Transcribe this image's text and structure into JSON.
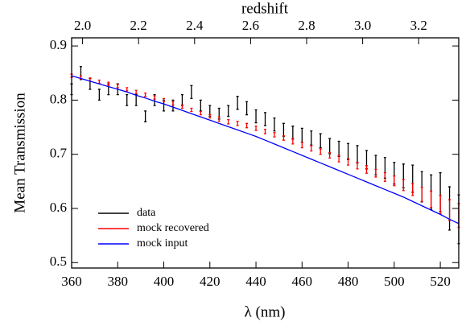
{
  "chart_data": {
    "type": "errorbar",
    "x_label": "λ (nm)",
    "y_label": "Mean Transmission",
    "x2_label": "redshift",
    "xlim": [
      360,
      528
    ],
    "ylim": [
      0.49,
      0.915
    ],
    "xticks": [
      360,
      380,
      400,
      420,
      440,
      460,
      480,
      500,
      520
    ],
    "yticks": [
      0.5,
      0.6,
      0.7,
      0.8,
      0.9
    ],
    "x2lim": [
      1.961,
      3.343
    ],
    "x2ticks": [
      {
        "value": 2.0,
        "label": "2.0"
      },
      2.2,
      2.4,
      2.6,
      2.8,
      {
        "value": 3.0,
        "label": "3.0"
      },
      3.2
    ],
    "legend": "lower left",
    "x": [
      360,
      364,
      368,
      372,
      376,
      380,
      384,
      388,
      392,
      396,
      400,
      404,
      408,
      412,
      416,
      420,
      424,
      428,
      432,
      436,
      440,
      444,
      448,
      452,
      456,
      460,
      464,
      468,
      472,
      476,
      480,
      484,
      488,
      492,
      496,
      500,
      504,
      508,
      512,
      516,
      520,
      524,
      528
    ],
    "series": [
      {
        "name": "data",
        "color": "#000000",
        "values": [
          0.82,
          0.85,
          0.83,
          0.81,
          0.82,
          0.82,
          0.8,
          0.8,
          0.77,
          0.8,
          0.79,
          0.79,
          0.8,
          0.815,
          0.79,
          0.78,
          0.775,
          0.78,
          0.795,
          0.785,
          0.77,
          0.765,
          0.755,
          0.745,
          0.74,
          0.735,
          0.73,
          0.725,
          0.715,
          0.71,
          0.705,
          0.7,
          0.69,
          0.68,
          0.675,
          0.665,
          0.66,
          0.655,
          0.64,
          0.63,
          0.63,
          0.6,
          0.58
        ],
        "errors": [
          0.01,
          0.012,
          0.01,
          0.01,
          0.01,
          0.01,
          0.01,
          0.01,
          0.01,
          0.01,
          0.01,
          0.01,
          0.01,
          0.012,
          0.01,
          0.01,
          0.01,
          0.01,
          0.012,
          0.012,
          0.012,
          0.012,
          0.012,
          0.012,
          0.012,
          0.013,
          0.013,
          0.013,
          0.014,
          0.014,
          0.015,
          0.016,
          0.017,
          0.018,
          0.019,
          0.02,
          0.022,
          0.025,
          0.028,
          0.032,
          0.036,
          0.04,
          0.045
        ]
      },
      {
        "name": "mock recovered",
        "color": "#ff0000",
        "values": [
          0.845,
          0.842,
          0.838,
          0.834,
          0.83,
          0.826,
          0.82,
          0.815,
          0.81,
          0.805,
          0.8,
          0.794,
          0.788,
          0.782,
          0.776,
          0.77,
          0.765,
          0.76,
          0.757,
          0.753,
          0.748,
          0.742,
          0.736,
          0.73,
          0.724,
          0.717,
          0.711,
          0.705,
          0.698,
          0.692,
          0.686,
          0.679,
          0.672,
          0.665,
          0.658,
          0.651,
          0.643,
          0.635,
          0.626,
          0.617,
          0.607,
          0.597,
          0.587
        ],
        "errors": [
          0.003,
          0.003,
          0.003,
          0.003,
          0.003,
          0.003,
          0.003,
          0.003,
          0.003,
          0.003,
          0.003,
          0.003,
          0.003,
          0.003,
          0.003,
          0.003,
          0.004,
          0.004,
          0.004,
          0.004,
          0.004,
          0.004,
          0.004,
          0.004,
          0.005,
          0.005,
          0.005,
          0.005,
          0.005,
          0.006,
          0.006,
          0.006,
          0.007,
          0.007,
          0.008,
          0.009,
          0.01,
          0.011,
          0.013,
          0.015,
          0.017,
          0.019,
          0.022
        ]
      },
      {
        "name": "mock input",
        "color": "#0000ff",
        "values": [
          0.845,
          0.84,
          0.835,
          0.83,
          0.825,
          0.82,
          0.815,
          0.809,
          0.804,
          0.798,
          0.793,
          0.787,
          0.781,
          0.775,
          0.769,
          0.763,
          0.757,
          0.751,
          0.745,
          0.739,
          0.733,
          0.726,
          0.719,
          0.712,
          0.705,
          0.698,
          0.691,
          0.684,
          0.677,
          0.67,
          0.663,
          0.656,
          0.649,
          0.642,
          0.635,
          0.628,
          0.621,
          0.613,
          0.605,
          0.597,
          0.589,
          0.58,
          0.572
        ]
      }
    ]
  }
}
